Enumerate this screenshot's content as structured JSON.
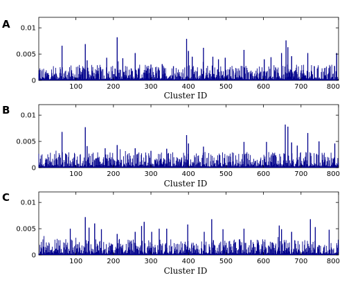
{
  "chart_data": [
    {
      "type": "bar",
      "panel_label": "A",
      "xlabel": "Cluster ID",
      "ylabel": "",
      "xlim": [
        1,
        800
      ],
      "ylim": [
        0,
        0.012
      ],
      "x_ticks": [
        100,
        200,
        300,
        400,
        500,
        600,
        700,
        800
      ],
      "y_ticks": [
        0,
        0.005,
        0.01
      ],
      "y_tick_labels": [
        "0",
        "0.005",
        "0.01"
      ],
      "grid": false,
      "color": "#00008B",
      "peaks": [
        [
          63,
          0.0066
        ],
        [
          125,
          0.0069
        ],
        [
          130,
          0.0038
        ],
        [
          182,
          0.0043
        ],
        [
          210,
          0.0082
        ],
        [
          225,
          0.0042
        ],
        [
          258,
          0.0052
        ],
        [
          300,
          0.003
        ],
        [
          330,
          0.0031
        ],
        [
          360,
          0.0027
        ],
        [
          395,
          0.0079
        ],
        [
          400,
          0.0056
        ],
        [
          410,
          0.0045
        ],
        [
          440,
          0.0062
        ],
        [
          465,
          0.0045
        ],
        [
          480,
          0.004
        ],
        [
          498,
          0.0043
        ],
        [
          548,
          0.0058
        ],
        [
          602,
          0.004
        ],
        [
          620,
          0.0044
        ],
        [
          648,
          0.0052
        ],
        [
          660,
          0.0076
        ],
        [
          665,
          0.0063
        ],
        [
          675,
          0.0046
        ],
        [
          718,
          0.0052
        ],
        [
          795,
          0.0052
        ]
      ]
    },
    {
      "type": "bar",
      "panel_label": "B",
      "xlabel": "Cluster ID",
      "ylabel": "",
      "xlim": [
        1,
        800
      ],
      "ylim": [
        0,
        0.012
      ],
      "x_ticks": [
        100,
        200,
        300,
        400,
        500,
        600,
        700,
        800
      ],
      "y_ticks": [
        0,
        0.005,
        0.01
      ],
      "y_tick_labels": [
        "0",
        "0.005",
        "0.01"
      ],
      "grid": false,
      "color": "#00008B",
      "peaks": [
        [
          63,
          0.0068
        ],
        [
          125,
          0.0077
        ],
        [
          130,
          0.0041
        ],
        [
          178,
          0.0037
        ],
        [
          210,
          0.0043
        ],
        [
          258,
          0.0037
        ],
        [
          300,
          0.0032
        ],
        [
          342,
          0.0036
        ],
        [
          395,
          0.0062
        ],
        [
          400,
          0.0046
        ],
        [
          440,
          0.004
        ],
        [
          548,
          0.0049
        ],
        [
          608,
          0.0049
        ],
        [
          658,
          0.0082
        ],
        [
          665,
          0.0078
        ],
        [
          675,
          0.0048
        ],
        [
          690,
          0.0042
        ],
        [
          718,
          0.0066
        ],
        [
          748,
          0.005
        ],
        [
          790,
          0.0046
        ]
      ]
    },
    {
      "type": "bar",
      "panel_label": "C",
      "xlabel": "Cluster ID",
      "ylabel": "",
      "xlim": [
        1,
        800
      ],
      "ylim": [
        0,
        0.012
      ],
      "x_ticks": [
        100,
        200,
        300,
        400,
        500,
        600,
        700,
        800
      ],
      "y_ticks": [
        0,
        0.005,
        0.01
      ],
      "y_tick_labels": [
        "0",
        "0.005",
        "0.01"
      ],
      "grid": false,
      "color": "#00008B",
      "peaks": [
        [
          85,
          0.005
        ],
        [
          125,
          0.0072
        ],
        [
          135,
          0.0052
        ],
        [
          150,
          0.006
        ],
        [
          168,
          0.0049
        ],
        [
          210,
          0.004
        ],
        [
          258,
          0.0044
        ],
        [
          275,
          0.0055
        ],
        [
          282,
          0.0063
        ],
        [
          302,
          0.0044
        ],
        [
          322,
          0.005
        ],
        [
          342,
          0.005
        ],
        [
          398,
          0.0058
        ],
        [
          442,
          0.0044
        ],
        [
          462,
          0.0068
        ],
        [
          492,
          0.0049
        ],
        [
          548,
          0.005
        ],
        [
          642,
          0.0056
        ],
        [
          648,
          0.0049
        ],
        [
          675,
          0.0044
        ],
        [
          725,
          0.0068
        ],
        [
          738,
          0.0053
        ],
        [
          775,
          0.0048
        ]
      ]
    }
  ]
}
